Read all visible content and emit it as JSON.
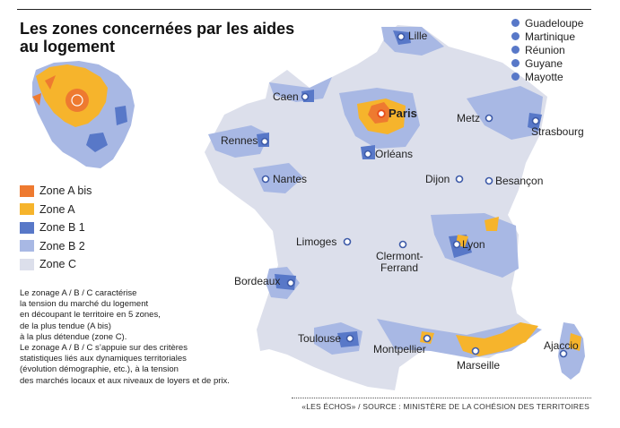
{
  "title": "Les zones concernées par les aides au logement",
  "colors": {
    "zone_a_bis": "#ee7a30",
    "zone_a": "#f6b42c",
    "zone_b1": "#5878c8",
    "zone_b2": "#a8b8e4",
    "zone_c": "#dcdfeb",
    "city_marker": "#3d5aa8",
    "capital_marker": "#e84e1b"
  },
  "legend": [
    {
      "label": "Zone A bis",
      "color": "#ee7a30"
    },
    {
      "label": "Zone A",
      "color": "#f6b42c"
    },
    {
      "label": "Zone B 1",
      "color": "#5878c8"
    },
    {
      "label": "Zone B 2",
      "color": "#a8b8e4"
    },
    {
      "label": "Zone C",
      "color": "#dcdfeb"
    }
  ],
  "note": [
    "Le zonage A / B / C caractérise",
    "la tension du marché du logement",
    "en découpant le territoire en 5 zones,",
    "de la plus tendue (A bis)",
    "à la plus détendue (zone C).",
    "Le zonage A / B / C s’appuie sur des critères",
    "statistiques liés aux dynamiques territoriales",
    "(évolution démographie, etc.), à la tension",
    "des marchés locaux et aux niveaux de loyers et de prix."
  ],
  "overseas": [
    "Guadeloupe",
    "Martinique",
    "Réunion",
    "Guyane",
    "Mayotte"
  ],
  "cities": {
    "lille": "Lille",
    "caen": "Caen",
    "paris": "Paris",
    "metz": "Metz",
    "strasbourg": "Strasbourg",
    "rennes": "Rennes",
    "orleans": "Orléans",
    "nantes": "Nantes",
    "dijon": "Dijon",
    "besancon": "Besançon",
    "limoges": "Limoges",
    "lyon": "Lyon",
    "clermont_line1": "Clermont-",
    "clermont_line2": "Ferrand",
    "bordeaux": "Bordeaux",
    "toulouse": "Toulouse",
    "montpellier": "Montpellier",
    "marseille": "Marseille",
    "ajaccio": "Ajaccio"
  },
  "source": "«LES ÉCHOS» / SOURCE : MINISTÈRE DE LA COHÉSION DES TERRITOIRES"
}
